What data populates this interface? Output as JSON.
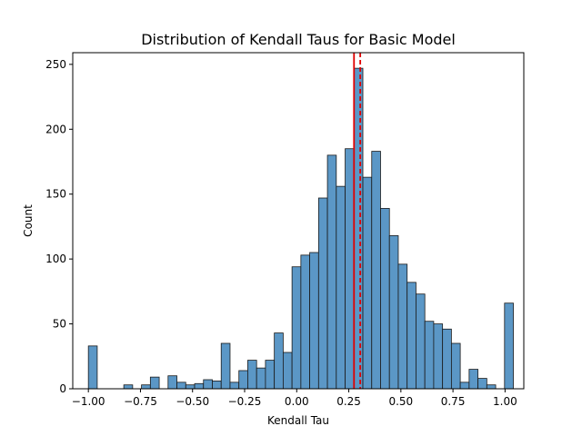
{
  "chart_data": {
    "type": "bar",
    "title": "Distribution of Kendall Taus for Basic Model",
    "xlabel": "Kendall Tau",
    "ylabel": "Count",
    "xlim": [
      -1.075,
      1.09
    ],
    "ylim": [
      0,
      259
    ],
    "xticks": [
      -1.0,
      -0.75,
      -0.5,
      -0.25,
      0.0,
      0.25,
      0.5,
      0.75,
      1.0
    ],
    "xtick_labels": [
      "−1.00",
      "−0.75",
      "−0.50",
      "−0.25",
      "0.00",
      "0.25",
      "0.50",
      "0.75",
      "1.00"
    ],
    "yticks": [
      0,
      50,
      100,
      150,
      200,
      250
    ],
    "ytick_labels": [
      "0",
      "50",
      "100",
      "150",
      "200",
      "250"
    ],
    "grid": false,
    "bin_start": -1.0,
    "bin_width": 0.0425,
    "counts": [
      33,
      0,
      0,
      0,
      3,
      0,
      3,
      9,
      0,
      10,
      5,
      3,
      4,
      7,
      6,
      35,
      5,
      14,
      22,
      16,
      22,
      43,
      28,
      94,
      103,
      105,
      147,
      180,
      156,
      185,
      247,
      163,
      183,
      139,
      118,
      96,
      82,
      73,
      52,
      50,
      46,
      35,
      5,
      15,
      8,
      3,
      0,
      66
    ],
    "bar_color": "#5b97c6",
    "vlines": [
      {
        "x": 0.275,
        "style": "solid",
        "color": "#e00000"
      },
      {
        "x": 0.305,
        "style": "dashed",
        "color": "#e00000"
      }
    ]
  }
}
